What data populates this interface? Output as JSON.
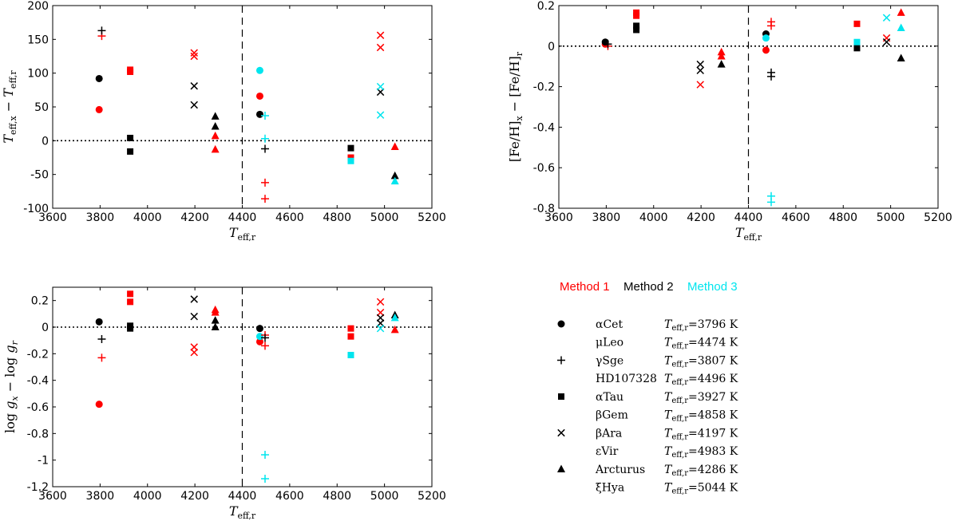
{
  "figure_title": "",
  "colors": {
    "Method 1": "#ff0000",
    "Method 2": "#000000",
    "Method 3": "#00e5ee"
  },
  "chart_data": [
    {
      "id": "teff",
      "type": "scatter",
      "title": "",
      "xlabel": "T_eff,r",
      "ylabel": "T_eff,x − T_eff,r",
      "xlim": [
        3600,
        5200
      ],
      "ylim": [
        -100,
        200
      ],
      "xticks": [
        3600,
        3800,
        4000,
        4200,
        4400,
        4600,
        4800,
        5000,
        5200
      ],
      "yticks": [
        -100,
        -50,
        0,
        50,
        100,
        150,
        200
      ],
      "xtick_labels": [
        "3600",
        "3800",
        "4000",
        "4200",
        "4400",
        "4600",
        "4800",
        "5000",
        "5200"
      ],
      "ytick_labels": [
        "-100",
        "-50",
        "0",
        "50",
        "100",
        "150",
        "200"
      ],
      "hline": 0,
      "vline": 4400,
      "points": [
        {
          "x": 3796,
          "y": 46,
          "m": "circle",
          "method": "Method 1"
        },
        {
          "x": 3796,
          "y": 92,
          "m": "circle",
          "method": "Method 2"
        },
        {
          "x": 3807,
          "y": 155,
          "m": "plus",
          "method": "Method 1"
        },
        {
          "x": 3807,
          "y": 163,
          "m": "plus",
          "method": "Method 2"
        },
        {
          "x": 3927,
          "y": 102,
          "m": "square",
          "method": "Method 1"
        },
        {
          "x": 3927,
          "y": 105,
          "m": "square",
          "method": "Method 1"
        },
        {
          "x": 3927,
          "y": 4,
          "m": "square",
          "method": "Method 2"
        },
        {
          "x": 3927,
          "y": -16,
          "m": "square",
          "method": "Method 2"
        },
        {
          "x": 4197,
          "y": 125,
          "m": "x",
          "method": "Method 1"
        },
        {
          "x": 4197,
          "y": 130,
          "m": "x",
          "method": "Method 1"
        },
        {
          "x": 4197,
          "y": 81,
          "m": "x",
          "method": "Method 2"
        },
        {
          "x": 4197,
          "y": 53,
          "m": "x",
          "method": "Method 2"
        },
        {
          "x": 4286,
          "y": 7,
          "m": "triangle",
          "method": "Method 1"
        },
        {
          "x": 4286,
          "y": -13,
          "m": "triangle",
          "method": "Method 1"
        },
        {
          "x": 4286,
          "y": 36,
          "m": "triangle",
          "method": "Method 2"
        },
        {
          "x": 4286,
          "y": 21,
          "m": "triangle",
          "method": "Method 2"
        },
        {
          "x": 4474,
          "y": 66,
          "m": "circle",
          "method": "Method 1"
        },
        {
          "x": 4474,
          "y": 39,
          "m": "circle",
          "method": "Method 2"
        },
        {
          "x": 4474,
          "y": 104,
          "m": "circle",
          "method": "Method 3"
        },
        {
          "x": 4496,
          "y": -62,
          "m": "plus",
          "method": "Method 1"
        },
        {
          "x": 4496,
          "y": -86,
          "m": "plus",
          "method": "Method 1"
        },
        {
          "x": 4496,
          "y": -12,
          "m": "plus",
          "method": "Method 2"
        },
        {
          "x": 4496,
          "y": 37,
          "m": "plus",
          "method": "Method 3"
        },
        {
          "x": 4496,
          "y": 3,
          "m": "plus",
          "method": "Method 3"
        },
        {
          "x": 4858,
          "y": -25,
          "m": "square",
          "method": "Method 1"
        },
        {
          "x": 4858,
          "y": -11,
          "m": "square",
          "method": "Method 2"
        },
        {
          "x": 4858,
          "y": -30,
          "m": "square",
          "method": "Method 3"
        },
        {
          "x": 4983,
          "y": 156,
          "m": "x",
          "method": "Method 1"
        },
        {
          "x": 4983,
          "y": 138,
          "m": "x",
          "method": "Method 1"
        },
        {
          "x": 4983,
          "y": 72,
          "m": "x",
          "method": "Method 2"
        },
        {
          "x": 4983,
          "y": 80,
          "m": "x",
          "method": "Method 3"
        },
        {
          "x": 4983,
          "y": 38,
          "m": "x",
          "method": "Method 3"
        },
        {
          "x": 5044,
          "y": -9,
          "m": "triangle",
          "method": "Method 1"
        },
        {
          "x": 5044,
          "y": -52,
          "m": "triangle",
          "method": "Method 2"
        },
        {
          "x": 5044,
          "y": -60,
          "m": "triangle",
          "method": "Method 3"
        }
      ]
    },
    {
      "id": "feh",
      "type": "scatter",
      "title": "",
      "xlabel": "T_eff,r",
      "ylabel": "[Fe/H]_x − [Fe/H]_r",
      "xlim": [
        3600,
        5200
      ],
      "ylim": [
        -0.8,
        0.2
      ],
      "xticks": [
        3600,
        3800,
        4000,
        4200,
        4400,
        4600,
        4800,
        5000,
        5200
      ],
      "yticks": [
        -0.8,
        -0.6,
        -0.4,
        -0.2,
        0,
        0.2
      ],
      "xtick_labels": [
        "3600",
        "3800",
        "4000",
        "4200",
        "4400",
        "4600",
        "4800",
        "5000",
        "5200"
      ],
      "ytick_labels": [
        "-0.8",
        "-0.6",
        "-0.4",
        "-0.2",
        "0",
        "0.2"
      ],
      "hline": 0,
      "vline": 4400,
      "points": [
        {
          "x": 3796,
          "y": 0.01,
          "m": "circle",
          "method": "Method 1"
        },
        {
          "x": 3796,
          "y": 0.02,
          "m": "circle",
          "method": "Method 2"
        },
        {
          "x": 3807,
          "y": 0.0,
          "m": "plus",
          "method": "Method 1"
        },
        {
          "x": 3807,
          "y": 0.01,
          "m": "plus",
          "method": "Method 2"
        },
        {
          "x": 3927,
          "y": 0.15,
          "m": "square",
          "method": "Method 1"
        },
        {
          "x": 3927,
          "y": 0.165,
          "m": "square",
          "method": "Method 1"
        },
        {
          "x": 3927,
          "y": 0.08,
          "m": "square",
          "method": "Method 2"
        },
        {
          "x": 3927,
          "y": 0.1,
          "m": "square",
          "method": "Method 2"
        },
        {
          "x": 4197,
          "y": -0.19,
          "m": "x",
          "method": "Method 1"
        },
        {
          "x": 4197,
          "y": -0.09,
          "m": "x",
          "method": "Method 2"
        },
        {
          "x": 4197,
          "y": -0.12,
          "m": "x",
          "method": "Method 2"
        },
        {
          "x": 4286,
          "y": -0.03,
          "m": "triangle",
          "method": "Method 1"
        },
        {
          "x": 4286,
          "y": -0.05,
          "m": "triangle",
          "method": "Method 1"
        },
        {
          "x": 4286,
          "y": -0.09,
          "m": "triangle",
          "method": "Method 2"
        },
        {
          "x": 4474,
          "y": -0.02,
          "m": "circle",
          "method": "Method 1"
        },
        {
          "x": 4474,
          "y": 0.06,
          "m": "circle",
          "method": "Method 2"
        },
        {
          "x": 4474,
          "y": 0.04,
          "m": "circle",
          "method": "Method 3"
        },
        {
          "x": 4496,
          "y": 0.12,
          "m": "plus",
          "method": "Method 1"
        },
        {
          "x": 4496,
          "y": 0.1,
          "m": "plus",
          "method": "Method 1"
        },
        {
          "x": 4496,
          "y": -0.13,
          "m": "plus",
          "method": "Method 2"
        },
        {
          "x": 4496,
          "y": -0.15,
          "m": "plus",
          "method": "Method 2"
        },
        {
          "x": 4496,
          "y": -0.74,
          "m": "plus",
          "method": "Method 3"
        },
        {
          "x": 4496,
          "y": -0.77,
          "m": "plus",
          "method": "Method 3"
        },
        {
          "x": 4858,
          "y": 0.11,
          "m": "square",
          "method": "Method 1"
        },
        {
          "x": 4858,
          "y": -0.01,
          "m": "square",
          "method": "Method 2"
        },
        {
          "x": 4858,
          "y": 0.02,
          "m": "square",
          "method": "Method 3"
        },
        {
          "x": 4983,
          "y": 0.04,
          "m": "x",
          "method": "Method 1"
        },
        {
          "x": 4983,
          "y": 0.02,
          "m": "x",
          "method": "Method 2"
        },
        {
          "x": 4983,
          "y": 0.14,
          "m": "x",
          "method": "Method 3"
        },
        {
          "x": 5044,
          "y": 0.165,
          "m": "triangle",
          "method": "Method 1"
        },
        {
          "x": 5044,
          "y": -0.06,
          "m": "triangle",
          "method": "Method 2"
        },
        {
          "x": 5044,
          "y": 0.09,
          "m": "triangle",
          "method": "Method 3"
        }
      ]
    },
    {
      "id": "logg",
      "type": "scatter",
      "title": "",
      "xlabel": "T_eff,r",
      "ylabel": "log g_x − log g_r",
      "xlim": [
        3600,
        5200
      ],
      "ylim": [
        -1.2,
        0.3
      ],
      "xticks": [
        3600,
        3800,
        4000,
        4200,
        4400,
        4600,
        4800,
        5000,
        5200
      ],
      "yticks": [
        -1.2,
        -1,
        -0.8,
        -0.6,
        -0.4,
        -0.2,
        0,
        0.2
      ],
      "xtick_labels": [
        "3600",
        "3800",
        "4000",
        "4200",
        "4400",
        "4600",
        "4800",
        "5000",
        "5200"
      ],
      "ytick_labels": [
        "-1.2",
        "-1",
        "-0.8",
        "-0.6",
        "-0.4",
        "-0.2",
        "0",
        "0.2"
      ],
      "hline": 0,
      "vline": 4400,
      "points": [
        {
          "x": 3796,
          "y": -0.58,
          "m": "circle",
          "method": "Method 1"
        },
        {
          "x": 3796,
          "y": 0.04,
          "m": "circle",
          "method": "Method 2"
        },
        {
          "x": 3807,
          "y": -0.23,
          "m": "plus",
          "method": "Method 1"
        },
        {
          "x": 3807,
          "y": -0.09,
          "m": "plus",
          "method": "Method 2"
        },
        {
          "x": 3927,
          "y": 0.25,
          "m": "square",
          "method": "Method 1"
        },
        {
          "x": 3927,
          "y": 0.19,
          "m": "square",
          "method": "Method 1"
        },
        {
          "x": 3927,
          "y": 0.01,
          "m": "square",
          "method": "Method 2"
        },
        {
          "x": 3927,
          "y": -0.01,
          "m": "square",
          "method": "Method 2"
        },
        {
          "x": 4197,
          "y": -0.15,
          "m": "x",
          "method": "Method 1"
        },
        {
          "x": 4197,
          "y": -0.19,
          "m": "x",
          "method": "Method 1"
        },
        {
          "x": 4197,
          "y": 0.21,
          "m": "x",
          "method": "Method 2"
        },
        {
          "x": 4197,
          "y": 0.08,
          "m": "x",
          "method": "Method 2"
        },
        {
          "x": 4286,
          "y": 0.13,
          "m": "triangle",
          "method": "Method 1"
        },
        {
          "x": 4286,
          "y": 0.11,
          "m": "triangle",
          "method": "Method 1"
        },
        {
          "x": 4286,
          "y": 0.05,
          "m": "triangle",
          "method": "Method 2"
        },
        {
          "x": 4286,
          "y": 0.0,
          "m": "triangle",
          "method": "Method 2"
        },
        {
          "x": 4474,
          "y": -0.11,
          "m": "circle",
          "method": "Method 1"
        },
        {
          "x": 4474,
          "y": -0.01,
          "m": "circle",
          "method": "Method 2"
        },
        {
          "x": 4474,
          "y": -0.07,
          "m": "circle",
          "method": "Method 3"
        },
        {
          "x": 4496,
          "y": -0.06,
          "m": "plus",
          "method": "Method 1"
        },
        {
          "x": 4496,
          "y": -0.14,
          "m": "plus",
          "method": "Method 1"
        },
        {
          "x": 4496,
          "y": -0.08,
          "m": "plus",
          "method": "Method 2"
        },
        {
          "x": 4496,
          "y": -0.96,
          "m": "plus",
          "method": "Method 3"
        },
        {
          "x": 4496,
          "y": -1.14,
          "m": "plus",
          "method": "Method 3"
        },
        {
          "x": 4858,
          "y": -0.01,
          "m": "square",
          "method": "Method 1"
        },
        {
          "x": 4858,
          "y": -0.07,
          "m": "square",
          "method": "Method 1"
        },
        {
          "x": 4858,
          "y": -0.21,
          "m": "square",
          "method": "Method 3"
        },
        {
          "x": 4983,
          "y": 0.19,
          "m": "x",
          "method": "Method 1"
        },
        {
          "x": 4983,
          "y": 0.11,
          "m": "x",
          "method": "Method 1"
        },
        {
          "x": 4983,
          "y": 0.07,
          "m": "x",
          "method": "Method 2"
        },
        {
          "x": 4983,
          "y": 0.03,
          "m": "x",
          "method": "Method 2"
        },
        {
          "x": 4983,
          "y": -0.01,
          "m": "x",
          "method": "Method 3"
        },
        {
          "x": 5044,
          "y": -0.02,
          "m": "triangle",
          "method": "Method 1"
        },
        {
          "x": 5044,
          "y": 0.09,
          "m": "triangle",
          "method": "Method 2"
        },
        {
          "x": 5044,
          "y": 0.07,
          "m": "triangle",
          "method": "Method 3"
        }
      ]
    }
  ],
  "legend": {
    "methods": [
      "Method 1",
      "Method 2",
      "Method 3"
    ],
    "entries": [
      {
        "marker": "circle",
        "star_a": "αCet",
        "teff_a": "3796",
        "star_b": "μLeo",
        "teff_b": "4474"
      },
      {
        "marker": "plus",
        "star_a": "γSge",
        "teff_a": "3807",
        "star_b": "HD107328",
        "teff_b": "4496"
      },
      {
        "marker": "square",
        "star_a": "αTau",
        "teff_a": "3927",
        "star_b": "βGem",
        "teff_b": "4858"
      },
      {
        "marker": "x",
        "star_a": "βAra",
        "teff_a": "4197",
        "star_b": "εVir",
        "teff_b": "4983"
      },
      {
        "marker": "triangle",
        "star_a": "Arcturus",
        "teff_a": "4286",
        "star_b": "ξHya",
        "teff_b": "5044"
      }
    ],
    "teff_prefix": "T",
    "teff_sub": "eff,r",
    "unit": "K"
  }
}
